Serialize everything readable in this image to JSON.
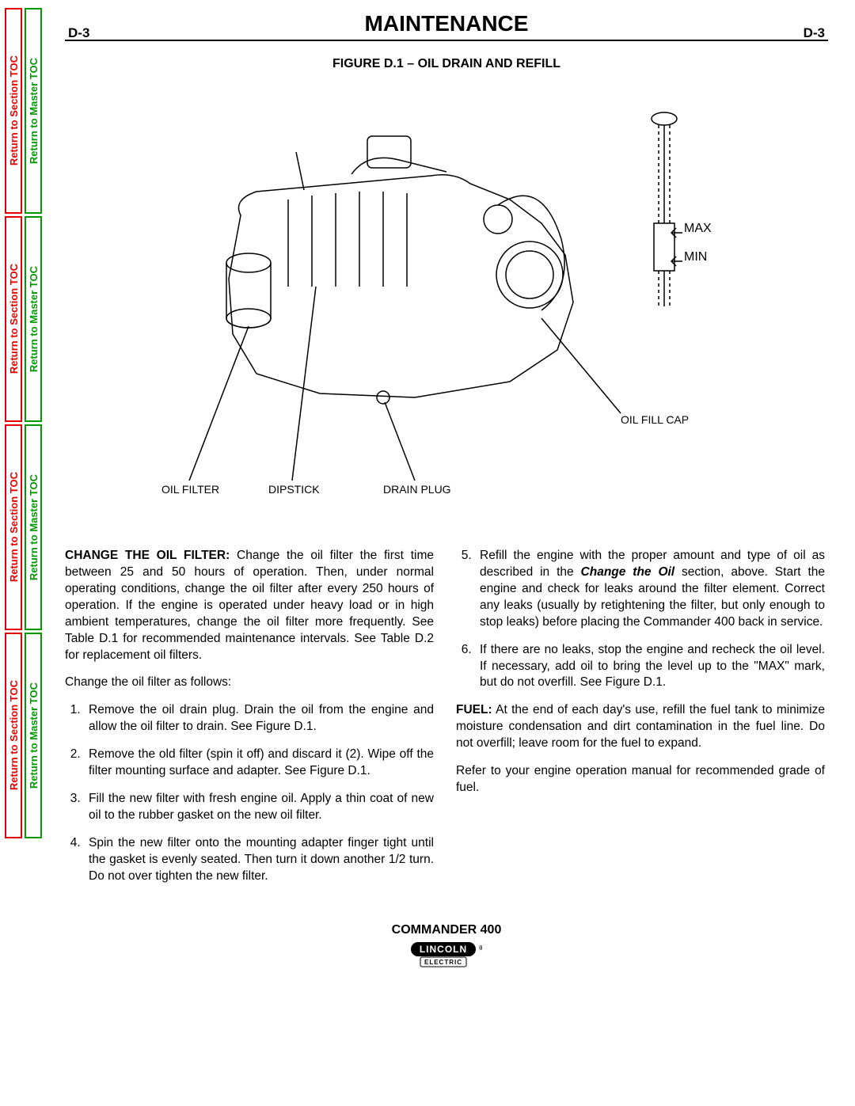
{
  "page": {
    "left_num": "D-3",
    "right_num": "D-3",
    "title": "MAINTENANCE",
    "figure_caption": "FIGURE D.1 – OIL DRAIN AND REFILL"
  },
  "side_tabs": {
    "section": "Return to Section TOC",
    "master": "Return to Master TOC",
    "red_color": "#e60000",
    "green_color": "#009900"
  },
  "figure_labels": {
    "max": "MAX",
    "min": "MIN",
    "oil_fill_cap": "OIL FILL CAP",
    "oil_filter": "OIL FILTER",
    "dipstick": "DIPSTICK",
    "drain_plug": "DRAIN PLUG"
  },
  "body": {
    "left": {
      "intro_bold": "CHANGE THE OIL FILTER:",
      "intro_rest": "  Change the oil filter the first time between 25 and 50 hours of operation.  Then, under normal operating conditions, change the oil filter after every 250 hours of operation.  If the engine is operated under heavy load or in high ambient temperatures, change the oil filter more frequently.  See Table D.1 for recommended maintenance intervals.   See Table D.2 for replacement oil filters.",
      "lead": "Change the oil filter as follows:",
      "steps": [
        "Remove the oil drain plug.  Drain the oil from the engine and allow the oil filter to drain.  See Figure D.1.",
        "Remove the old filter (spin it off) and discard it (2).  Wipe off the filter mounting surface and adapter.  See Figure D.1.",
        "Fill the new filter with fresh engine oil.  Apply a thin coat of new oil to the rubber gasket on the new oil filter.",
        "Spin the new filter onto the mounting adapter finger tight until the gasket is evenly seated.  Then turn it down another 1/2 turn.  Do not over tighten the new filter."
      ]
    },
    "right": {
      "steps": [
        "Refill the engine with the proper amount and type of oil as described in the {ITALIC}Change the Oil{/ITALIC} section, above.   Start the engine and check for leaks around the filter element.  Correct any leaks (usually by retightening the filter, but only enough to stop leaks) before placing the Commander 400 back in service.",
        "If there are no leaks, stop the engine and recheck the oil level.  If necessary, add oil to bring the level up to the \"MAX\" mark, but do not overfill.   See Figure D.1."
      ],
      "fuel_bold": "FUEL:",
      "fuel_rest": "  At the end of each day's use, refill the fuel tank to minimize moisture condensation and dirt contamination in the fuel line.  Do not overfill; leave room for the fuel to expand.",
      "refer": "Refer to your engine operation manual for recommended grade of fuel."
    }
  },
  "footer": {
    "model": "COMMANDER 400",
    "brand_top": "LINCOLN",
    "brand_bottom": "ELECTRIC"
  }
}
